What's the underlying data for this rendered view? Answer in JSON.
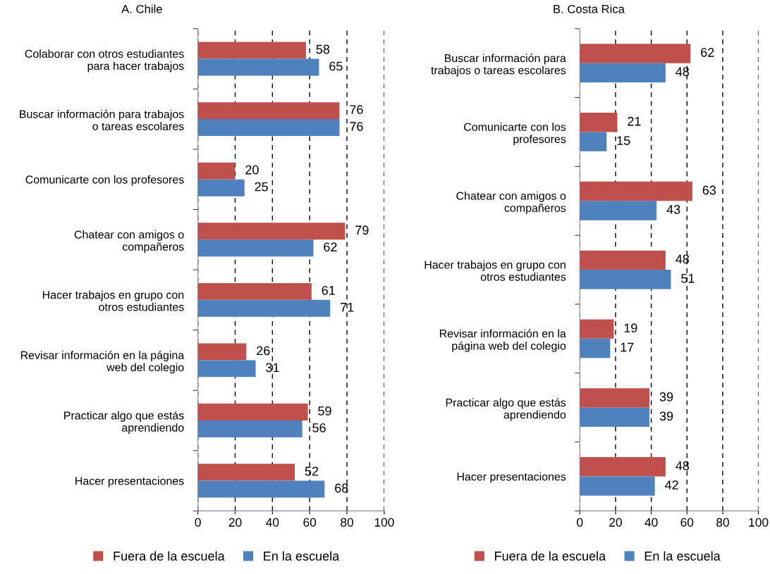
{
  "chart_data": [
    {
      "type": "bar",
      "orientation": "horizontal",
      "title": "A. Chile",
      "categories": [
        "Colaborar con otros estudiantes\npara hacer trabajos",
        "Buscar información para trabajos\no tareas escolares",
        "Comunicarte con los profesores",
        "Chatear con amigos o\ncompañeros",
        "Hacer trabajos en grupo con\notros estudiantes",
        "Revisar información en la página\nweb del colegio",
        "Practicar algo que estás\naprendiendo",
        "Hacer presentaciones"
      ],
      "series": [
        {
          "name": "Fuera de la escuela",
          "color": "#c0504d",
          "values": [
            58,
            76,
            20,
            79,
            61,
            26,
            59,
            52
          ]
        },
        {
          "name": "En la escuela",
          "color": "#4f81bd",
          "values": [
            65,
            76,
            25,
            62,
            71,
            31,
            56,
            68
          ]
        }
      ],
      "xlim": [
        0,
        100
      ],
      "xticks": [
        0,
        20,
        40,
        60,
        80,
        100
      ],
      "grid": "x",
      "data_labels": true,
      "legend": "bottom"
    },
    {
      "type": "bar",
      "orientation": "horizontal",
      "title": "B. Costa Rica",
      "categories": [
        "Buscar información para\ntrabajos o tareas escolares",
        "Comunicarte con los\nprofesores",
        "Chatear con amigos o\ncompañeros",
        "Hacer trabajos en grupo con\notros estudiantes",
        "Revisar información en la\npágina web del colegio",
        "Practicar algo que estás\naprendiendo",
        "Hacer presentaciones"
      ],
      "series": [
        {
          "name": "Fuera de la escuela",
          "color": "#c0504d",
          "values": [
            62,
            21,
            63,
            48,
            19,
            39,
            48
          ]
        },
        {
          "name": "En la escuela",
          "color": "#4f81bd",
          "values": [
            48,
            15,
            43,
            51,
            17,
            39,
            42
          ]
        }
      ],
      "xlim": [
        0,
        100
      ],
      "xticks": [
        0,
        20,
        40,
        60,
        80,
        100
      ],
      "grid": "x",
      "data_labels": true,
      "legend": "bottom"
    }
  ]
}
